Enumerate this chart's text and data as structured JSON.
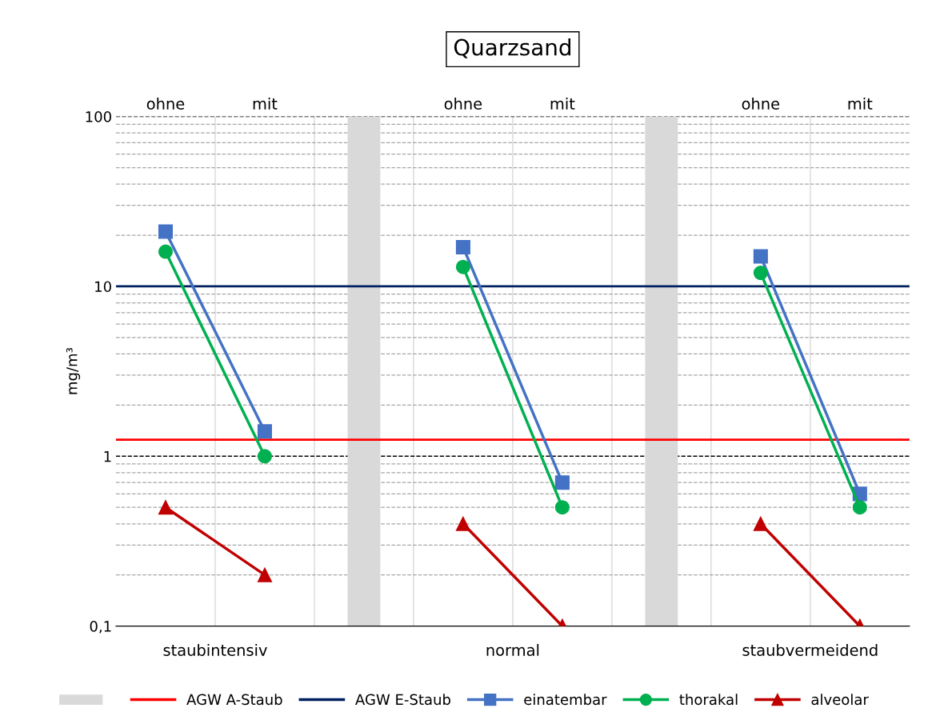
{
  "chart_data": {
    "type": "line",
    "title": "Quarzsand",
    "ylabel": "mg/m³",
    "categories": [
      "ohne",
      "mit",
      null,
      "ohne",
      "mit",
      null,
      "ohne",
      "mit"
    ],
    "annotations": [
      "staubintensiv",
      "normal",
      "staubvermeidend"
    ],
    "log": true,
    "ylim": [
      0.1,
      100
    ],
    "yticks": [
      {
        "value": 0.1,
        "label": "0,1"
      },
      1,
      10,
      100
    ],
    "grid": true,
    "legend": "bottom",
    "ref_lines": [
      {
        "axis": "y",
        "value": 1.25,
        "label": "AGW A-Staub",
        "color": "#ff0000"
      },
      {
        "axis": "y",
        "value": 10,
        "label": "AGW E-Staub",
        "color": "#002060"
      }
    ],
    "series": [
      {
        "type": "bar",
        "color": "#d9d9d9",
        "values": [
          null,
          null,
          100,
          null,
          null,
          100,
          null,
          null
        ]
      },
      {
        "name": "einatembar",
        "color": "#4472c4",
        "marker": "square",
        "values": [
          21,
          1.4,
          null,
          17,
          0.7,
          null,
          15,
          0.6
        ]
      },
      {
        "name": "thorakal",
        "color": "#00b050",
        "marker": "circle",
        "values": [
          16,
          1.0,
          null,
          13,
          0.5,
          null,
          12,
          0.5
        ]
      },
      {
        "name": "alveolar",
        "color": "#c00000",
        "marker": "triangle",
        "values": [
          0.5,
          0.2,
          null,
          0.4,
          0.1,
          null,
          0.4,
          0.1
        ]
      }
    ]
  }
}
